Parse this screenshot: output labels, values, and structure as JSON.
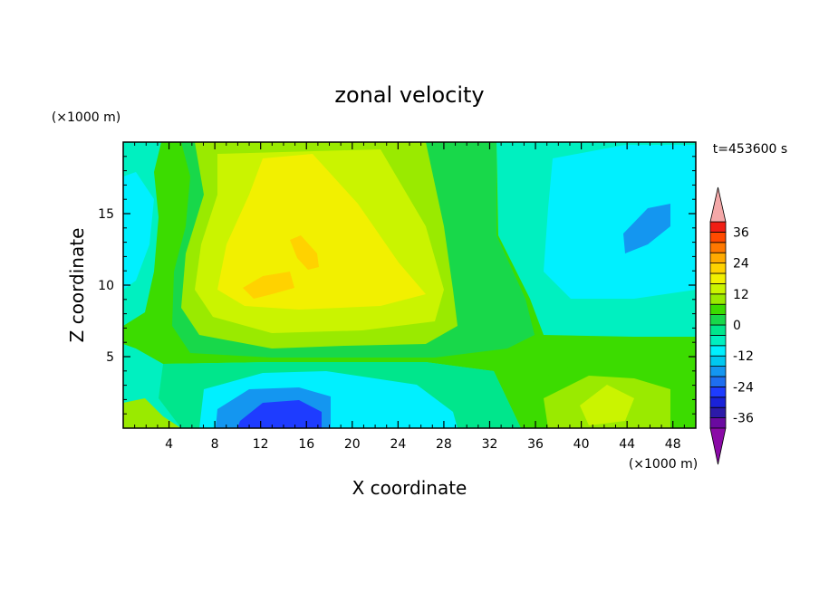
{
  "chart_data": {
    "type": "heatmap",
    "title": "zonal velocity",
    "xlabel": "X coordinate",
    "ylabel": "Z coordinate",
    "x_unit": "(×1000 m)",
    "y_unit": "(×1000 m)",
    "time_label": "t=453600 s",
    "xlim": [
      0,
      50
    ],
    "ylim": [
      0,
      20
    ],
    "x_ticks": [
      4,
      8,
      12,
      16,
      20,
      24,
      28,
      32,
      36,
      40,
      44,
      48
    ],
    "y_ticks": [
      5,
      10,
      15
    ],
    "colorbar": {
      "ticks": [
        36,
        24,
        12,
        0,
        -12,
        -24,
        -36
      ],
      "levels": [
        -40,
        -36,
        -32,
        -28,
        -24,
        -20,
        -16,
        -12,
        -8,
        -4,
        0,
        4,
        8,
        12,
        16,
        20,
        24,
        28,
        32,
        36,
        40
      ],
      "colors": [
        "#6a0aa0",
        "#2c1aa8",
        "#1a22d8",
        "#1e3cff",
        "#1e6ef0",
        "#1496f0",
        "#00c8f0",
        "#00f0ff",
        "#00f0c0",
        "#00e68c",
        "#18d84a",
        "#3cdc00",
        "#9aea00",
        "#caf400",
        "#f2f000",
        "#ffd200",
        "#ffaa00",
        "#ff7800",
        "#ff4a00",
        "#f01e14"
      ],
      "under_color": "#8a0aa6",
      "over_color": "#f4a8a8"
    },
    "grid": false,
    "legend": "colorbar-right"
  }
}
